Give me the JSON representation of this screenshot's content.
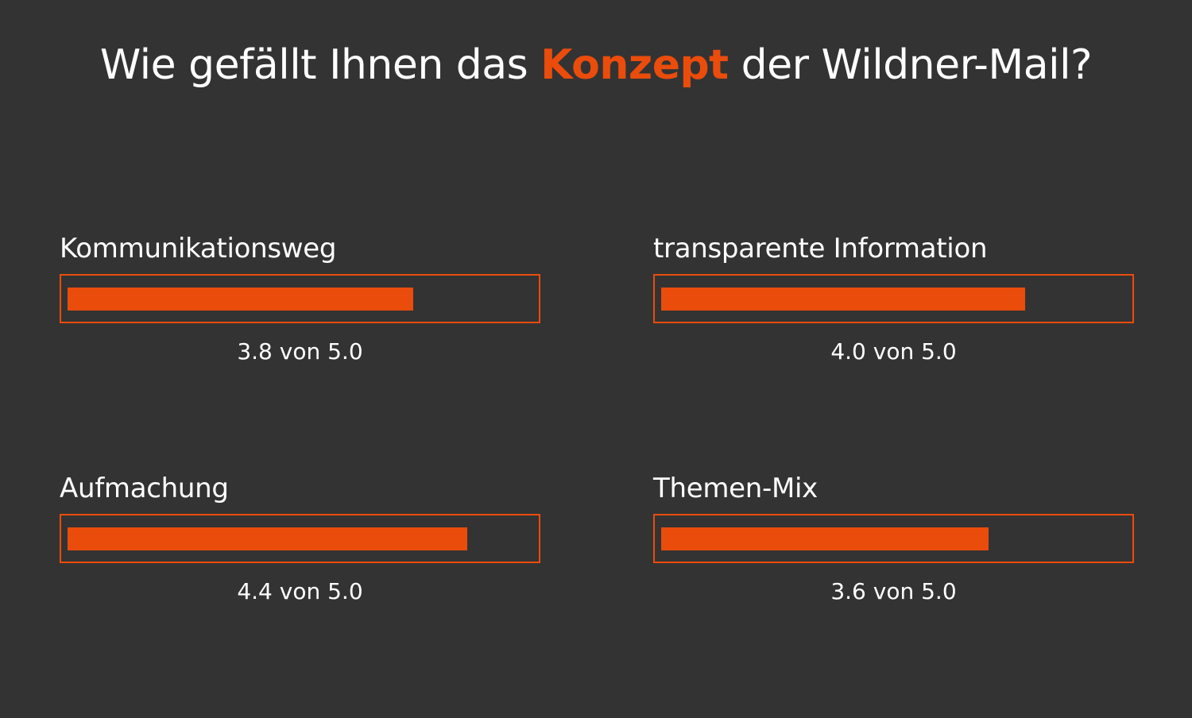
{
  "title": {
    "before": "Wie gefällt Ihnen das ",
    "highlight": "Konzept",
    "after": " der Wildner-Mail?"
  },
  "colors": {
    "background": "#333333",
    "accent": "#ea4c0c",
    "text": "#ffffff"
  },
  "chart_data": {
    "type": "bar",
    "orientation": "horizontal",
    "title": "Wie gefällt Ihnen das Konzept der Wildner-Mail?",
    "categories": [
      "Kommunikationsweg",
      "transparente Information",
      "Aufmachung",
      "Themen-Mix"
    ],
    "values": [
      3.8,
      4.0,
      4.4,
      3.6
    ],
    "max": 5.0,
    "value_labels": [
      "3.8 von 5.0",
      "4.0 von 5.0",
      "4.4 von 5.0",
      "3.6 von 5.0"
    ]
  }
}
